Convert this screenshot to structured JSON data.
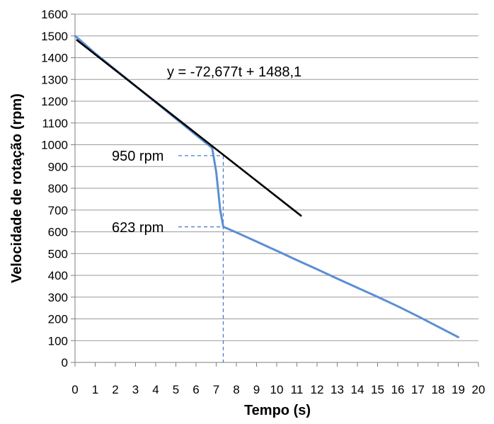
{
  "chart_data": {
    "type": "line",
    "title": "",
    "xlabel": "Tempo (s)",
    "ylabel": "Velocidade de rotação (rpm)",
    "xlim": [
      0,
      20
    ],
    "ylim": [
      0,
      1600
    ],
    "x_ticks": [
      "0",
      "1",
      "2",
      "3",
      "4",
      "5",
      "6",
      "7",
      "8",
      "9",
      "10",
      "11",
      "12",
      "13",
      "14",
      "15",
      "16",
      "17",
      "18",
      "19",
      "20"
    ],
    "y_ticks": [
      "0",
      "100",
      "200",
      "300",
      "400",
      "500",
      "600",
      "700",
      "800",
      "900",
      "1000",
      "1100",
      "1200",
      "1300",
      "1400",
      "1500",
      "1600"
    ],
    "grid": "horizontal",
    "series": [
      {
        "color": "#5b8fd4",
        "points": [
          [
            0,
            1500
          ],
          [
            0.2,
            1485
          ],
          [
            1,
            1420
          ],
          [
            2,
            1345
          ],
          [
            3,
            1270
          ],
          [
            4,
            1195
          ],
          [
            5,
            1120
          ],
          [
            6,
            1045
          ],
          [
            6.8,
            985
          ],
          [
            7.0,
            875
          ],
          [
            7.2,
            700
          ],
          [
            7.35,
            623
          ],
          [
            8,
            597
          ],
          [
            9,
            555
          ],
          [
            10,
            513
          ],
          [
            11,
            470
          ],
          [
            12,
            428
          ],
          [
            13,
            385
          ],
          [
            14,
            343
          ],
          [
            15,
            301
          ],
          [
            16,
            258
          ],
          [
            17,
            212
          ],
          [
            18,
            164
          ],
          [
            19,
            116
          ]
        ]
      },
      {
        "color": "#000000",
        "points": [
          [
            0.1,
            1480.8
          ],
          [
            11.2,
            674.1
          ]
        ]
      }
    ],
    "annotations": {
      "equation": "y = -72,677t + 1488,1",
      "label_high": "950 rpm",
      "label_low": "623 rpm",
      "y_high": 950,
      "y_low": 623,
      "x_guide": 7.35
    }
  }
}
